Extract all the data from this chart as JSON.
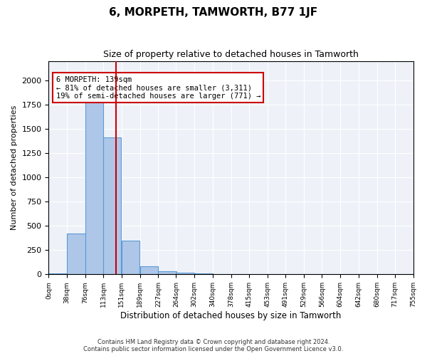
{
  "title": "6, MORPETH, TAMWORTH, B77 1JF",
  "subtitle": "Size of property relative to detached houses in Tamworth",
  "xlabel": "Distribution of detached houses by size in Tamworth",
  "ylabel": "Number of detached properties",
  "footer_line1": "Contains HM Land Registry data © Crown copyright and database right 2024.",
  "footer_line2": "Contains public sector information licensed under the Open Government Licence v3.0.",
  "bin_edges": [
    0,
    38,
    76,
    113,
    151,
    189,
    227,
    264,
    302,
    340,
    378,
    415,
    453,
    491,
    529,
    566,
    604,
    642,
    680,
    717,
    755
  ],
  "bin_counts": [
    10,
    420,
    1810,
    1410,
    350,
    80,
    35,
    20,
    10,
    0,
    0,
    0,
    0,
    0,
    0,
    0,
    0,
    0,
    0,
    0
  ],
  "property_size": 139,
  "annotation_title": "6 MORPETH: 139sqm",
  "annotation_line1": "← 81% of detached houses are smaller (3,311)",
  "annotation_line2": "19% of semi-detached houses are larger (771) →",
  "bar_color": "#aec6e8",
  "bar_edge_color": "#5b9bd5",
  "vline_color": "#cc0000",
  "annotation_box_color": "#cc0000",
  "bg_color": "#eef2f8",
  "ylim": [
    0,
    2200
  ],
  "tick_labels": [
    "0sqm",
    "38sqm",
    "76sqm",
    "113sqm",
    "151sqm",
    "189sqm",
    "227sqm",
    "264sqm",
    "302sqm",
    "340sqm",
    "378sqm",
    "415sqm",
    "453sqm",
    "491sqm",
    "529sqm",
    "566sqm",
    "604sqm",
    "642sqm",
    "680sqm",
    "717sqm",
    "755sqm"
  ]
}
